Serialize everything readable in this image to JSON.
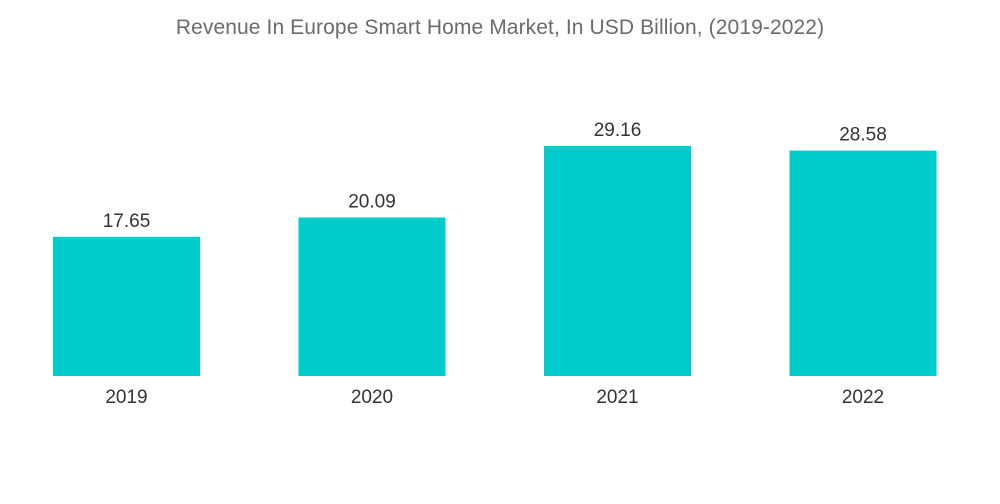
{
  "chart_data": {
    "type": "bar",
    "title": "Revenue In Europe Smart Home Market, In USD Billion, (2019-2022)",
    "categories": [
      "2019",
      "2020",
      "2021",
      "2022"
    ],
    "values": [
      17.65,
      20.09,
      29.16,
      28.58
    ],
    "value_labels": [
      "17.65",
      "20.09",
      "29.16",
      "28.58"
    ],
    "xlabel": "",
    "ylabel": "",
    "ylim": [
      0,
      29.16
    ],
    "grid": false,
    "legend": "none",
    "bar_color": "#00CCCC"
  }
}
